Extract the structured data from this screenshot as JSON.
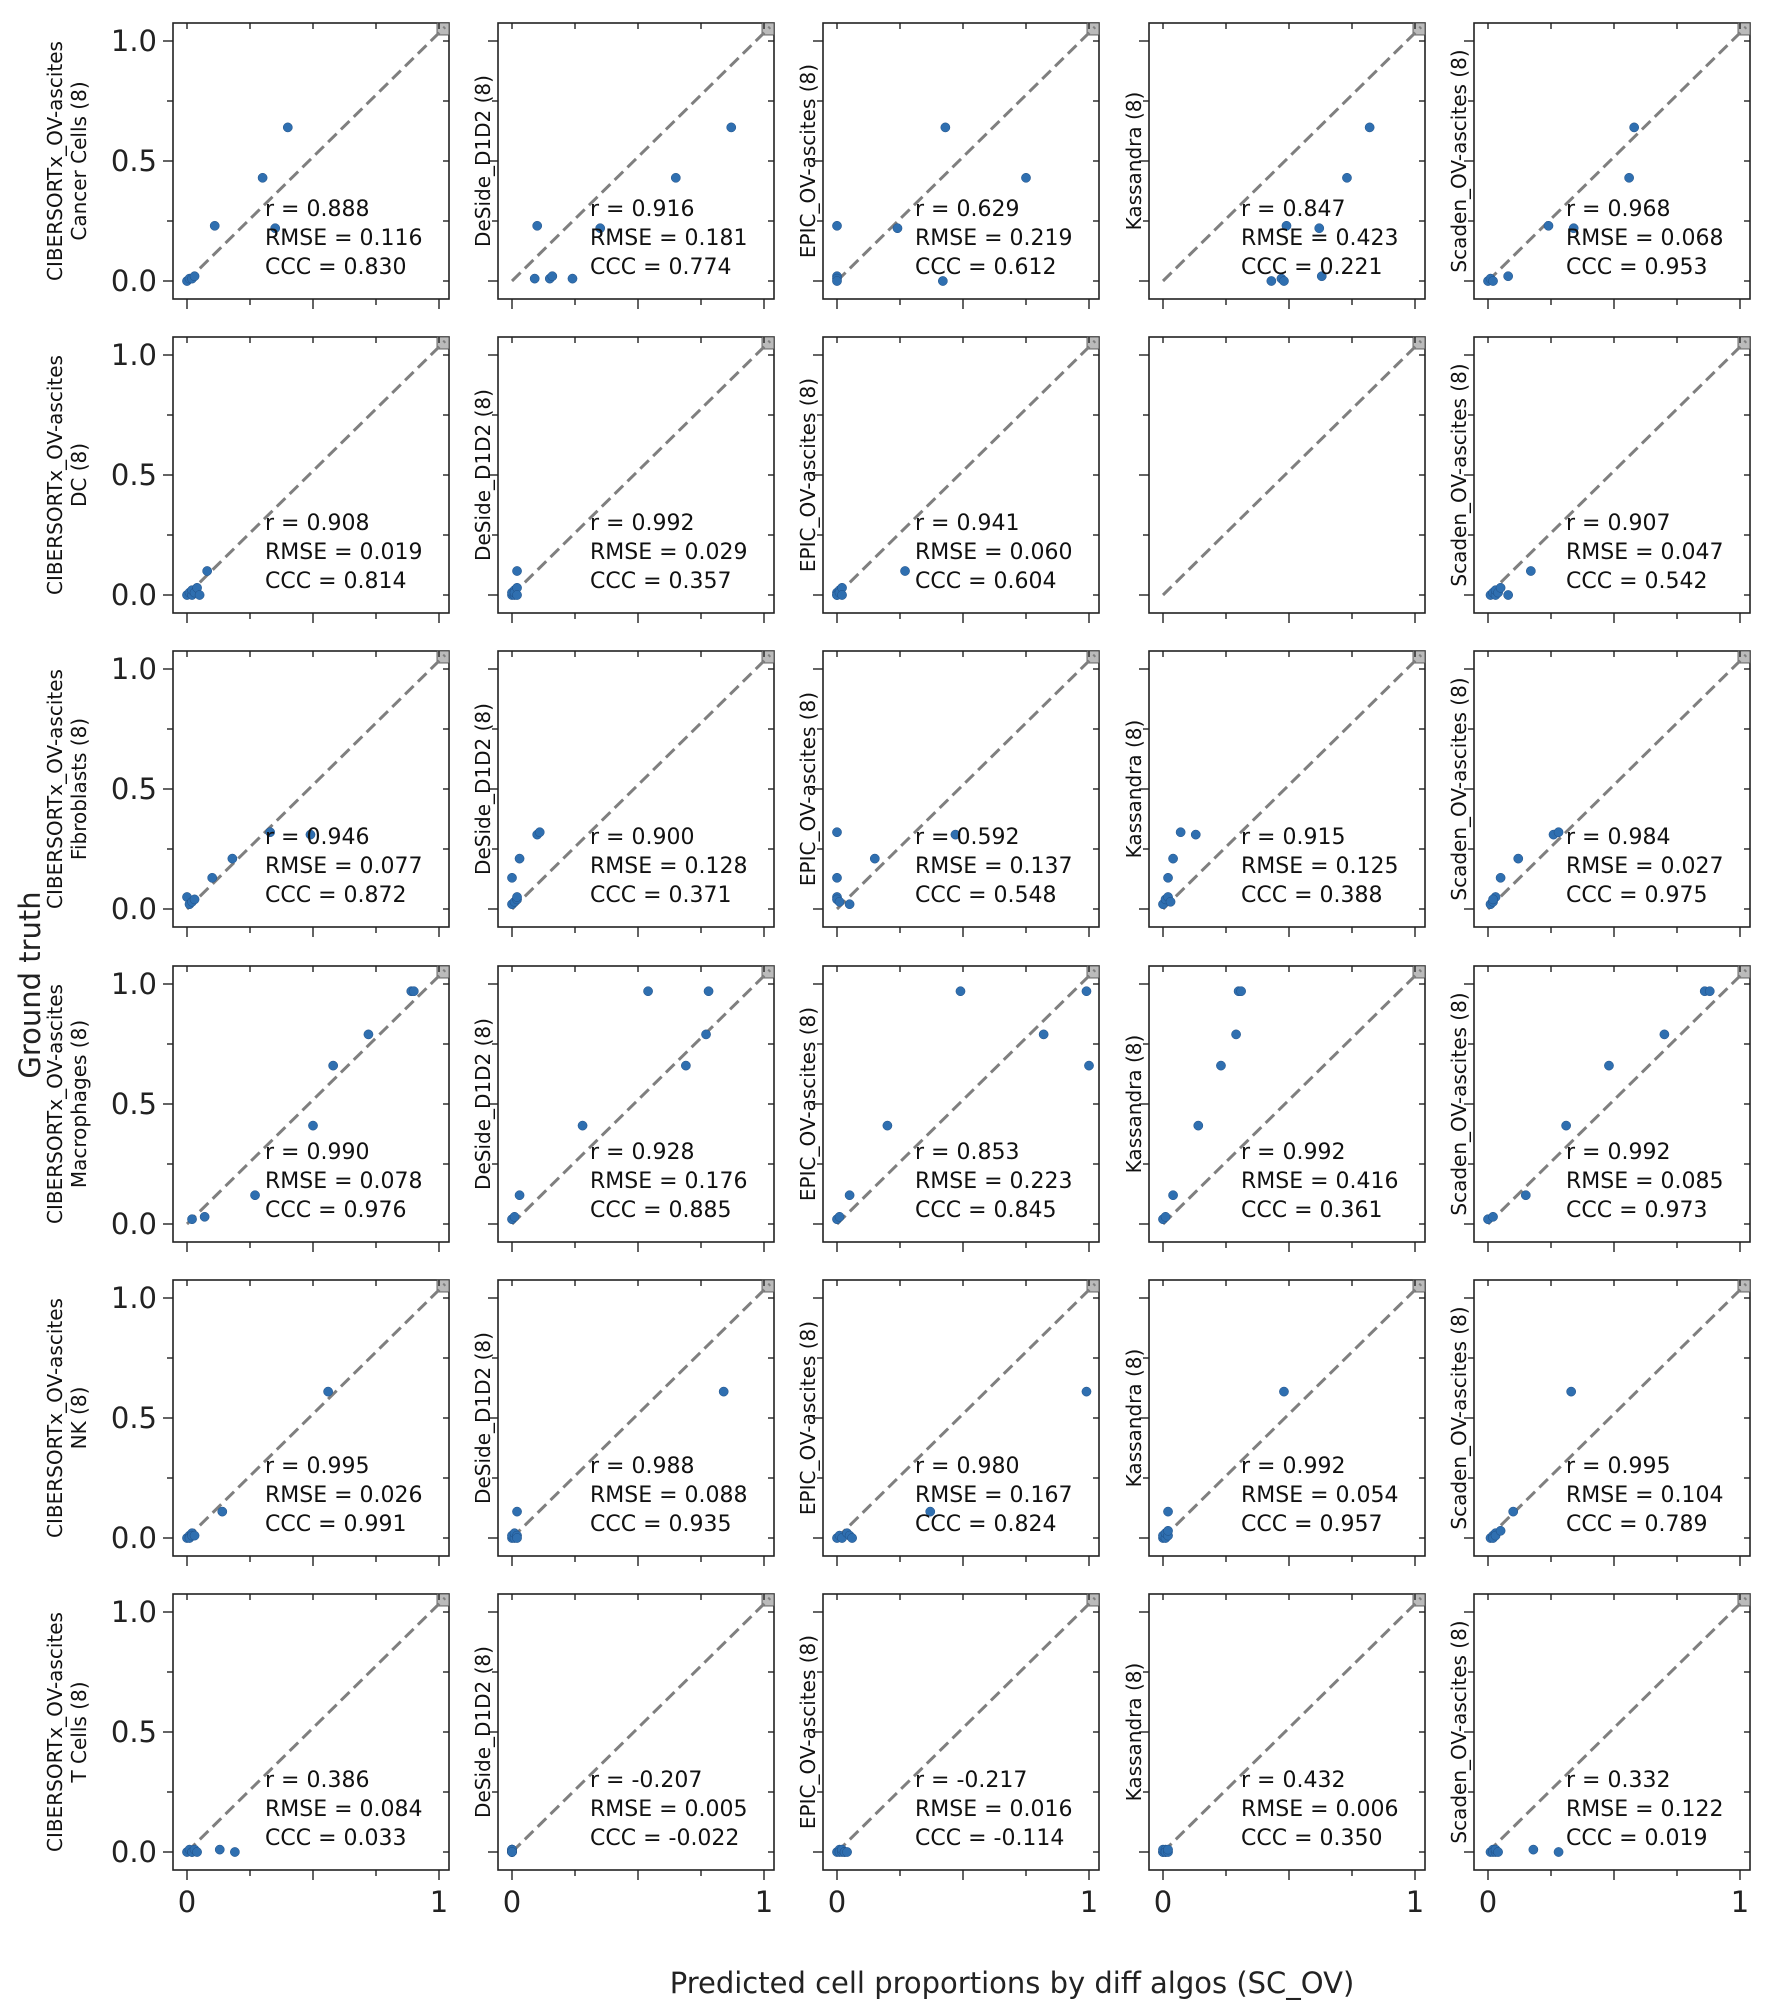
{
  "figure": {
    "xlabel": "Predicted cell proportions by diff algos (SC_OV)",
    "ylabel": "Ground truth",
    "xticks": [
      "0",
      "1"
    ],
    "yticks": [
      "0.0",
      "0.5",
      "1.0"
    ],
    "colors": {
      "point": "#2f6fb0",
      "diagonal": "#7f7f7f"
    }
  },
  "chart_data": [
    {
      "type": "scatter",
      "row": 0,
      "col": 0,
      "ylabel_lines": [
        "CIBERSORTx_OV-ascites",
        "Cancer Cells (8)"
      ],
      "stats": {
        "r": "r = 0.888",
        "rmse": "RMSE = 0.116",
        "ccc": "CCC = 0.830"
      },
      "xlim": [
        0,
        1
      ],
      "ylim": [
        0,
        1
      ],
      "x": [
        0.0,
        0.01,
        0.02,
        0.03,
        0.11,
        0.3,
        0.35,
        0.4
      ],
      "y": [
        0.0,
        0.01,
        0.01,
        0.02,
        0.23,
        0.43,
        0.22,
        0.64
      ]
    },
    {
      "type": "scatter",
      "row": 0,
      "col": 1,
      "ylabel_lines": [
        "DeSide_D1D2 (8)"
      ],
      "stats": {
        "r": "r = 0.916",
        "rmse": "RMSE = 0.181",
        "ccc": "CCC = 0.774"
      },
      "xlim": [
        0,
        1
      ],
      "ylim": [
        0,
        1
      ],
      "x": [
        0.09,
        0.1,
        0.15,
        0.16,
        0.24,
        0.35,
        0.65,
        0.87
      ],
      "y": [
        0.01,
        0.23,
        0.01,
        0.02,
        0.01,
        0.22,
        0.43,
        0.64
      ]
    },
    {
      "type": "scatter",
      "row": 0,
      "col": 2,
      "ylabel_lines": [
        "EPIC_OV-ascites (8)"
      ],
      "stats": {
        "r": "r = 0.629",
        "rmse": "RMSE = 0.219",
        "ccc": "CCC = 0.612"
      },
      "xlim": [
        0,
        1
      ],
      "ylim": [
        0,
        1
      ],
      "x": [
        0.0,
        0.0,
        0.0,
        0.0,
        0.24,
        0.42,
        0.43,
        0.75
      ],
      "y": [
        0.23,
        0.02,
        0.01,
        0.0,
        0.22,
        0.0,
        0.64,
        0.43
      ]
    },
    {
      "type": "scatter",
      "row": 0,
      "col": 3,
      "ylabel_lines": [
        "Kassandra (8)"
      ],
      "stats": {
        "r": "r = 0.847",
        "rmse": "RMSE = 0.423",
        "ccc": "CCC = 0.221"
      },
      "xlim": [
        0,
        1
      ],
      "ylim": [
        0,
        1
      ],
      "x": [
        0.43,
        0.47,
        0.48,
        0.49,
        0.62,
        0.63,
        0.73,
        0.82
      ],
      "y": [
        0.0,
        0.01,
        0.0,
        0.23,
        0.22,
        0.02,
        0.43,
        0.64
      ]
    },
    {
      "type": "scatter",
      "row": 0,
      "col": 4,
      "ylabel_lines": [
        "Scaden_OV-ascites (8)"
      ],
      "stats": {
        "r": "r = 0.968",
        "rmse": "RMSE = 0.068",
        "ccc": "CCC = 0.953"
      },
      "xlim": [
        0,
        1
      ],
      "ylim": [
        0,
        1
      ],
      "x": [
        0.0,
        0.01,
        0.02,
        0.08,
        0.24,
        0.34,
        0.56,
        0.58
      ],
      "y": [
        0.0,
        0.01,
        0.0,
        0.02,
        0.23,
        0.22,
        0.43,
        0.64
      ]
    },
    {
      "type": "scatter",
      "row": 1,
      "col": 0,
      "ylabel_lines": [
        "CIBERSORTx_OV-ascites",
        "DC (8)"
      ],
      "stats": {
        "r": "r = 0.908",
        "rmse": "RMSE = 0.019",
        "ccc": "CCC = 0.814"
      },
      "xlim": [
        0,
        1
      ],
      "ylim": [
        0,
        1
      ],
      "x": [
        0.0,
        0.01,
        0.02,
        0.02,
        0.03,
        0.04,
        0.05,
        0.08
      ],
      "y": [
        0.0,
        0.01,
        0.0,
        0.02,
        0.01,
        0.03,
        0.0,
        0.1
      ]
    },
    {
      "type": "scatter",
      "row": 1,
      "col": 1,
      "ylabel_lines": [
        "DeSide_D1D2 (8)"
      ],
      "stats": {
        "r": "r = 0.992",
        "rmse": "RMSE = 0.029",
        "ccc": "CCC = 0.357"
      },
      "xlim": [
        0,
        1
      ],
      "ylim": [
        0,
        1
      ],
      "x": [
        0.0,
        0.0,
        0.01,
        0.01,
        0.01,
        0.02,
        0.02,
        0.02
      ],
      "y": [
        0.0,
        0.01,
        0.0,
        0.02,
        0.01,
        0.03,
        0.0,
        0.1
      ]
    },
    {
      "type": "scatter",
      "row": 1,
      "col": 2,
      "ylabel_lines": [
        "EPIC_OV-ascites (8)"
      ],
      "stats": {
        "r": "r = 0.941",
        "rmse": "RMSE = 0.060",
        "ccc": "CCC = 0.604"
      },
      "xlim": [
        0,
        1
      ],
      "ylim": [
        0,
        1
      ],
      "x": [
        0.0,
        0.0,
        0.0,
        0.01,
        0.01,
        0.02,
        0.02,
        0.27
      ],
      "y": [
        0.0,
        0.01,
        0.0,
        0.02,
        0.01,
        0.03,
        0.0,
        0.1
      ]
    },
    {
      "type": "scatter",
      "row": 1,
      "col": 3,
      "ylabel_lines": [],
      "stats": {
        "r": "",
        "rmse": "",
        "ccc": ""
      },
      "xlim": [
        0,
        1
      ],
      "ylim": [
        0,
        1
      ],
      "x": [],
      "y": []
    },
    {
      "type": "scatter",
      "row": 1,
      "col": 4,
      "ylabel_lines": [
        "Scaden_OV-ascites (8)"
      ],
      "stats": {
        "r": "r = 0.907",
        "rmse": "RMSE = 0.047",
        "ccc": "CCC = 0.542"
      },
      "xlim": [
        0,
        1
      ],
      "ylim": [
        0,
        1
      ],
      "x": [
        0.01,
        0.02,
        0.03,
        0.03,
        0.04,
        0.05,
        0.08,
        0.17
      ],
      "y": [
        0.0,
        0.01,
        0.0,
        0.02,
        0.01,
        0.03,
        0.0,
        0.1
      ]
    },
    {
      "type": "scatter",
      "row": 2,
      "col": 0,
      "ylabel_lines": [
        "CIBERSORTx_OV-ascites",
        "Fibroblasts (8)"
      ],
      "stats": {
        "r": "r = 0.946",
        "rmse": "RMSE = 0.077",
        "ccc": "CCC = 0.872"
      },
      "xlim": [
        0,
        1
      ],
      "ylim": [
        0,
        1
      ],
      "x": [
        0.0,
        0.01,
        0.02,
        0.03,
        0.1,
        0.18,
        0.33,
        0.49
      ],
      "y": [
        0.05,
        0.02,
        0.03,
        0.04,
        0.13,
        0.21,
        0.32,
        0.31
      ]
    },
    {
      "type": "scatter",
      "row": 2,
      "col": 1,
      "ylabel_lines": [
        "DeSide_D1D2 (8)"
      ],
      "stats": {
        "r": "r = 0.900",
        "rmse": "RMSE = 0.128",
        "ccc": "CCC = 0.371"
      },
      "xlim": [
        0,
        1
      ],
      "ylim": [
        0,
        1
      ],
      "x": [
        0.0,
        0.01,
        0.02,
        0.02,
        0.0,
        0.03,
        0.1,
        0.11
      ],
      "y": [
        0.02,
        0.03,
        0.04,
        0.05,
        0.13,
        0.21,
        0.31,
        0.32
      ]
    },
    {
      "type": "scatter",
      "row": 2,
      "col": 2,
      "ylabel_lines": [
        "EPIC_OV-ascites (8)"
      ],
      "stats": {
        "r": "r = 0.592",
        "rmse": "RMSE = 0.137",
        "ccc": "CCC = 0.548"
      },
      "xlim": [
        0,
        1
      ],
      "ylim": [
        0,
        1
      ],
      "x": [
        0.0,
        0.0,
        0.01,
        0.0,
        0.05,
        0.0,
        0.15,
        0.47
      ],
      "y": [
        0.05,
        0.04,
        0.03,
        0.13,
        0.02,
        0.32,
        0.21,
        0.31
      ]
    },
    {
      "type": "scatter",
      "row": 2,
      "col": 3,
      "ylabel_lines": [
        "Kassandra (8)"
      ],
      "stats": {
        "r": "r = 0.915",
        "rmse": "RMSE = 0.125",
        "ccc": "CCC = 0.388"
      },
      "xlim": [
        0,
        1
      ],
      "ylim": [
        0,
        1
      ],
      "x": [
        0.0,
        0.01,
        0.02,
        0.02,
        0.03,
        0.04,
        0.07,
        0.13
      ],
      "y": [
        0.02,
        0.04,
        0.05,
        0.13,
        0.03,
        0.21,
        0.32,
        0.31
      ]
    },
    {
      "type": "scatter",
      "row": 2,
      "col": 4,
      "ylabel_lines": [
        "Scaden_OV-ascites (8)"
      ],
      "stats": {
        "r": "r = 0.984",
        "rmse": "RMSE = 0.027",
        "ccc": "CCC = 0.975"
      },
      "xlim": [
        0,
        1
      ],
      "ylim": [
        0,
        1
      ],
      "x": [
        0.01,
        0.02,
        0.03,
        0.05,
        0.12,
        0.26,
        0.28,
        0.02
      ],
      "y": [
        0.02,
        0.03,
        0.05,
        0.13,
        0.21,
        0.31,
        0.32,
        0.04
      ]
    },
    {
      "type": "scatter",
      "row": 3,
      "col": 0,
      "ylabel_lines": [
        "CIBERSORTx_OV-ascites",
        "Macrophages (8)"
      ],
      "stats": {
        "r": "r = 0.990",
        "rmse": "RMSE = 0.078",
        "ccc": "CCC = 0.976"
      },
      "xlim": [
        0,
        1
      ],
      "ylim": [
        0,
        1
      ],
      "x": [
        0.02,
        0.07,
        0.27,
        0.5,
        0.58,
        0.72,
        0.89,
        0.9
      ],
      "y": [
        0.02,
        0.03,
        0.12,
        0.41,
        0.66,
        0.79,
        0.97,
        0.97
      ]
    },
    {
      "type": "scatter",
      "row": 3,
      "col": 1,
      "ylabel_lines": [
        "DeSide_D1D2 (8)"
      ],
      "stats": {
        "r": "r = 0.928",
        "rmse": "RMSE = 0.176",
        "ccc": "CCC = 0.885"
      },
      "xlim": [
        0,
        1
      ],
      "ylim": [
        0,
        1
      ],
      "x": [
        0.0,
        0.01,
        0.03,
        0.28,
        0.54,
        0.69,
        0.77,
        0.78
      ],
      "y": [
        0.02,
        0.03,
        0.12,
        0.41,
        0.97,
        0.66,
        0.79,
        0.97
      ]
    },
    {
      "type": "scatter",
      "row": 3,
      "col": 2,
      "ylabel_lines": [
        "EPIC_OV-ascites (8)"
      ],
      "stats": {
        "r": "r = 0.853",
        "rmse": "RMSE = 0.223",
        "ccc": "CCC = 0.845"
      },
      "xlim": [
        0,
        1
      ],
      "ylim": [
        0,
        1
      ],
      "x": [
        0.0,
        0.01,
        0.05,
        0.2,
        0.49,
        0.82,
        0.99,
        1.0
      ],
      "y": [
        0.02,
        0.03,
        0.12,
        0.41,
        0.97,
        0.79,
        0.97,
        0.66
      ]
    },
    {
      "type": "scatter",
      "row": 3,
      "col": 3,
      "ylabel_lines": [
        "Kassandra (8)"
      ],
      "stats": {
        "r": "r = 0.992",
        "rmse": "RMSE = 0.416",
        "ccc": "CCC = 0.361"
      },
      "xlim": [
        0,
        1
      ],
      "ylim": [
        0,
        1
      ],
      "x": [
        0.0,
        0.01,
        0.04,
        0.14,
        0.23,
        0.29,
        0.3,
        0.31
      ],
      "y": [
        0.02,
        0.03,
        0.12,
        0.41,
        0.66,
        0.79,
        0.97,
        0.97
      ]
    },
    {
      "type": "scatter",
      "row": 3,
      "col": 4,
      "ylabel_lines": [
        "Scaden_OV-ascites (8)"
      ],
      "stats": {
        "r": "r = 0.992",
        "rmse": "RMSE = 0.085",
        "ccc": "CCC = 0.973"
      },
      "xlim": [
        0,
        1
      ],
      "ylim": [
        0,
        1
      ],
      "x": [
        0.0,
        0.02,
        0.15,
        0.31,
        0.48,
        0.7,
        0.86,
        0.88
      ],
      "y": [
        0.02,
        0.03,
        0.12,
        0.41,
        0.66,
        0.79,
        0.97,
        0.97
      ]
    },
    {
      "type": "scatter",
      "row": 4,
      "col": 0,
      "ylabel_lines": [
        "CIBERSORTx_OV-ascites",
        "NK (8)"
      ],
      "stats": {
        "r": "r = 0.995",
        "rmse": "RMSE = 0.026",
        "ccc": "CCC = 0.991"
      },
      "xlim": [
        0,
        1
      ],
      "ylim": [
        0,
        1
      ],
      "x": [
        0.0,
        0.01,
        0.01,
        0.02,
        0.02,
        0.03,
        0.14,
        0.56
      ],
      "y": [
        0.0,
        0.01,
        0.0,
        0.02,
        0.01,
        0.01,
        0.11,
        0.61
      ]
    },
    {
      "type": "scatter",
      "row": 4,
      "col": 1,
      "ylabel_lines": [
        "DeSide_D1D2 (8)"
      ],
      "stats": {
        "r": "r = 0.988",
        "rmse": "RMSE = 0.088",
        "ccc": "CCC = 0.935"
      },
      "xlim": [
        0,
        1
      ],
      "ylim": [
        0,
        1
      ],
      "x": [
        0.0,
        0.0,
        0.01,
        0.01,
        0.02,
        0.02,
        0.02,
        0.84
      ],
      "y": [
        0.0,
        0.01,
        0.0,
        0.02,
        0.01,
        0.0,
        0.11,
        0.61
      ]
    },
    {
      "type": "scatter",
      "row": 4,
      "col": 2,
      "ylabel_lines": [
        "EPIC_OV-ascites (8)"
      ],
      "stats": {
        "r": "r = 0.980",
        "rmse": "RMSE = 0.167",
        "ccc": "CCC = 0.824"
      },
      "xlim": [
        0,
        1
      ],
      "ylim": [
        0,
        1
      ],
      "x": [
        0.0,
        0.01,
        0.02,
        0.04,
        0.05,
        0.06,
        0.37,
        0.99
      ],
      "y": [
        0.0,
        0.01,
        0.0,
        0.02,
        0.01,
        0.0,
        0.11,
        0.61
      ]
    },
    {
      "type": "scatter",
      "row": 4,
      "col": 3,
      "ylabel_lines": [
        "Kassandra (8)"
      ],
      "stats": {
        "r": "r = 0.992",
        "rmse": "RMSE = 0.054",
        "ccc": "CCC = 0.957"
      },
      "xlim": [
        0,
        1
      ],
      "ylim": [
        0,
        1
      ],
      "x": [
        0.0,
        0.0,
        0.01,
        0.01,
        0.02,
        0.02,
        0.02,
        0.48
      ],
      "y": [
        0.0,
        0.01,
        0.0,
        0.02,
        0.01,
        0.03,
        0.11,
        0.61
      ]
    },
    {
      "type": "scatter",
      "row": 4,
      "col": 4,
      "ylabel_lines": [
        "Scaden_OV-ascites (8)"
      ],
      "stats": {
        "r": "r = 0.995",
        "rmse": "RMSE = 0.104",
        "ccc": "CCC = 0.789"
      },
      "xlim": [
        0,
        1
      ],
      "ylim": [
        0,
        1
      ],
      "x": [
        0.01,
        0.02,
        0.02,
        0.03,
        0.03,
        0.05,
        0.1,
        0.33
      ],
      "y": [
        0.0,
        0.01,
        0.0,
        0.02,
        0.01,
        0.03,
        0.11,
        0.61
      ]
    },
    {
      "type": "scatter",
      "row": 5,
      "col": 0,
      "ylabel_lines": [
        "CIBERSORTx_OV-ascites",
        "T Cells (8)"
      ],
      "stats": {
        "r": "r = 0.386",
        "rmse": "RMSE = 0.084",
        "ccc": "CCC = 0.033"
      },
      "xlim": [
        0,
        1
      ],
      "ylim": [
        0,
        1
      ],
      "x": [
        0.0,
        0.01,
        0.02,
        0.02,
        0.03,
        0.04,
        0.13,
        0.19
      ],
      "y": [
        0.0,
        0.01,
        0.0,
        0.0,
        0.01,
        0.0,
        0.01,
        0.0
      ]
    },
    {
      "type": "scatter",
      "row": 5,
      "col": 1,
      "ylabel_lines": [
        "DeSide_D1D2 (8)"
      ],
      "stats": {
        "r": "r = -0.207",
        "rmse": "RMSE = 0.005",
        "ccc": "CCC = -0.022"
      },
      "xlim": [
        0,
        1
      ],
      "ylim": [
        0,
        1
      ],
      "x": [
        0.0,
        0.0,
        0.0,
        0.0,
        0.0,
        0.0,
        0.0,
        0.0
      ],
      "y": [
        0.0,
        0.01,
        0.0,
        0.0,
        0.01,
        0.0,
        0.01,
        0.0
      ]
    },
    {
      "type": "scatter",
      "row": 5,
      "col": 2,
      "ylabel_lines": [
        "EPIC_OV-ascites (8)"
      ],
      "stats": {
        "r": "r = -0.217",
        "rmse": "RMSE = 0.016",
        "ccc": "CCC = -0.114"
      },
      "xlim": [
        0,
        1
      ],
      "ylim": [
        0,
        1
      ],
      "x": [
        0.0,
        0.01,
        0.01,
        0.02,
        0.02,
        0.03,
        0.03,
        0.04
      ],
      "y": [
        0.0,
        0.01,
        0.0,
        0.0,
        0.01,
        0.0,
        0.0,
        0.0
      ]
    },
    {
      "type": "scatter",
      "row": 5,
      "col": 3,
      "ylabel_lines": [
        "Kassandra (8)"
      ],
      "stats": {
        "r": "r = 0.432",
        "rmse": "RMSE = 0.006",
        "ccc": "CCC = 0.350"
      },
      "xlim": [
        0,
        1
      ],
      "ylim": [
        0,
        1
      ],
      "x": [
        0.0,
        0.0,
        0.0,
        0.01,
        0.01,
        0.01,
        0.02,
        0.02
      ],
      "y": [
        0.0,
        0.0,
        0.01,
        0.0,
        0.01,
        0.0,
        0.0,
        0.01
      ]
    },
    {
      "type": "scatter",
      "row": 5,
      "col": 4,
      "ylabel_lines": [
        "Scaden_OV-ascites (8)"
      ],
      "stats": {
        "r": "r = 0.332",
        "rmse": "RMSE = 0.122",
        "ccc": "CCC = 0.019"
      },
      "xlim": [
        0,
        1
      ],
      "ylim": [
        0,
        1
      ],
      "x": [
        0.01,
        0.02,
        0.02,
        0.03,
        0.03,
        0.04,
        0.18,
        0.28
      ],
      "y": [
        0.0,
        0.01,
        0.0,
        0.0,
        0.01,
        0.0,
        0.01,
        0.0
      ]
    }
  ]
}
